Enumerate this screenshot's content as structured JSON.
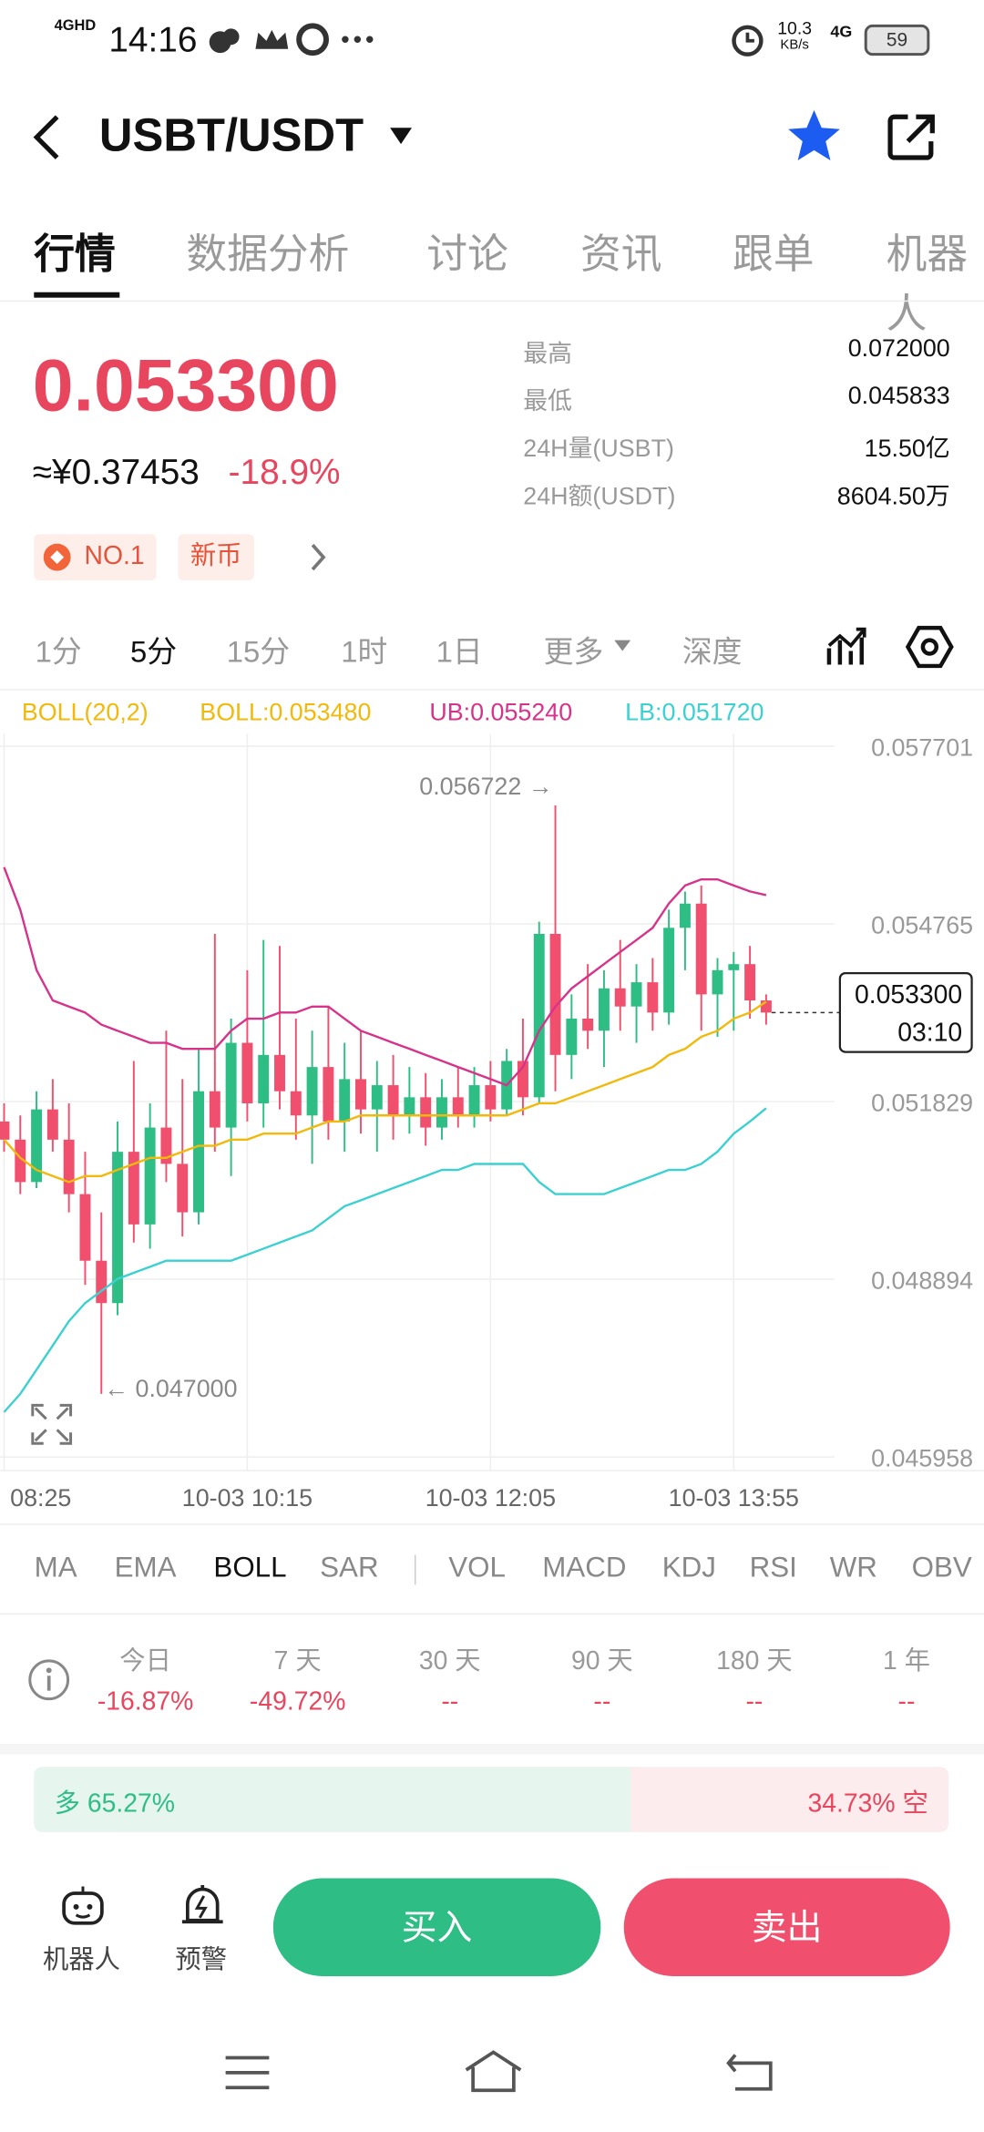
{
  "status_bar": {
    "network": "4GHD",
    "time": "14:16",
    "speed": "10.3",
    "speed_unit": "KB/s",
    "network2": "4G",
    "battery": "59"
  },
  "header": {
    "pair": "USBT/USDT"
  },
  "tabs": [
    "行情",
    "数据分析",
    "讨论",
    "资讯",
    "跟单",
    "机器人"
  ],
  "price": {
    "last": "0.053300",
    "cny": "≈¥0.37453",
    "change": "-18.9%"
  },
  "stats": [
    {
      "label": "最高",
      "value": "0.072000"
    },
    {
      "label": "最低",
      "value": "0.045833"
    },
    {
      "label": "24H量(USBT)",
      "value": "15.50亿"
    },
    {
      "label": "24H额(USDT)",
      "value": "8604.50万"
    }
  ],
  "badges": [
    "NO.1",
    "新币"
  ],
  "intervals": [
    "1分",
    "5分",
    "15分",
    "1时",
    "1日",
    "更多",
    "深度"
  ],
  "chart_data": {
    "type": "candlestick",
    "indicator": "BOLL(20,2)",
    "categories": [
      "08:25",
      null,
      null,
      null,
      null,
      null,
      null,
      null,
      null,
      null,
      null,
      null,
      null,
      null,
      null,
      "10-03 10:15",
      null,
      null,
      null,
      null,
      null,
      null,
      null,
      null,
      null,
      null,
      null,
      null,
      null,
      null,
      "10-03 12:05",
      null,
      null,
      null,
      null,
      null,
      null,
      null,
      null,
      null,
      null,
      null,
      null,
      null,
      null,
      "10-03 13:55",
      null,
      null
    ],
    "open": [
      0.0515,
      0.0512,
      0.0505,
      0.0517,
      0.0512,
      0.0503,
      0.0492,
      0.0485,
      0.051,
      0.0498,
      0.0514,
      0.0508,
      0.05,
      0.052,
      0.0514,
      0.0528,
      0.0518,
      0.0526,
      0.052,
      0.0516,
      0.0524,
      0.0515,
      0.0522,
      0.0517,
      0.0521,
      0.0516,
      0.0519,
      0.0514,
      0.0519,
      0.0516,
      0.0521,
      0.0517,
      0.0525,
      0.0519,
      0.0546,
      0.0526,
      0.0532,
      0.053,
      0.0537,
      0.0534,
      0.0538,
      0.0533,
      0.0547,
      0.0551,
      0.0536,
      0.054,
      0.0541,
      0.0535
    ],
    "high": [
      0.0518,
      0.0516,
      0.052,
      0.0522,
      0.0518,
      0.051,
      0.05,
      0.0515,
      0.0525,
      0.0518,
      0.053,
      0.0522,
      0.0527,
      0.0546,
      0.0532,
      0.054,
      0.0545,
      0.0544,
      0.0532,
      0.053,
      0.0534,
      0.0528,
      0.053,
      0.0525,
      0.0526,
      0.0524,
      0.0523,
      0.0522,
      0.0524,
      0.0524,
      0.0525,
      0.0527,
      0.0532,
      0.0548,
      0.056722,
      0.0536,
      0.0541,
      0.054,
      0.0545,
      0.0541,
      0.0542,
      0.055,
      0.0553,
      0.0554,
      0.0542,
      0.0543,
      0.0544,
      0.0536
    ],
    "low": [
      0.051,
      0.0503,
      0.0504,
      0.051,
      0.05,
      0.0488,
      0.047,
      0.0483,
      0.0495,
      0.0494,
      0.0505,
      0.0496,
      0.0498,
      0.051,
      0.0506,
      0.0515,
      0.0514,
      0.0517,
      0.0512,
      0.0508,
      0.0512,
      0.051,
      0.0513,
      0.051,
      0.0512,
      0.0513,
      0.0511,
      0.0512,
      0.0514,
      0.0514,
      0.0515,
      0.0516,
      0.0516,
      0.0518,
      0.052,
      0.0522,
      0.0527,
      0.0524,
      0.053,
      0.0528,
      0.053,
      0.0531,
      0.054,
      0.053,
      0.0529,
      0.053,
      0.0532,
      0.0531
    ],
    "close": [
      0.0512,
      0.0505,
      0.0517,
      0.0512,
      0.0503,
      0.0492,
      0.0485,
      0.051,
      0.0498,
      0.0514,
      0.0508,
      0.05,
      0.052,
      0.0514,
      0.0528,
      0.0518,
      0.0526,
      0.052,
      0.0516,
      0.0524,
      0.0515,
      0.0522,
      0.0517,
      0.0521,
      0.0516,
      0.0519,
      0.0514,
      0.0519,
      0.0516,
      0.0521,
      0.0517,
      0.0525,
      0.0519,
      0.0546,
      0.0526,
      0.0532,
      0.053,
      0.0537,
      0.0534,
      0.0538,
      0.0533,
      0.0547,
      0.0551,
      0.0536,
      0.054,
      0.0541,
      0.0535,
      0.0533
    ],
    "up_color": "#2ebd85",
    "down_color": "#f0506e",
    "series": [
      {
        "name": "BOLL:0.053480",
        "color": "#f0b90b",
        "values": [
          0.0512,
          0.0509,
          0.0507,
          0.0506,
          0.0505,
          0.0506,
          0.0506,
          0.0507,
          0.0508,
          0.0509,
          0.0509,
          0.051,
          0.0511,
          0.0511,
          0.0512,
          0.0512,
          0.0513,
          0.0513,
          0.0513,
          0.0514,
          0.0515,
          0.0515,
          0.0516,
          0.0516,
          0.0516,
          0.0516,
          0.0516,
          0.0516,
          0.0516,
          0.0516,
          0.0516,
          0.0516,
          0.0517,
          0.0518,
          0.0518,
          0.0519,
          0.052,
          0.0521,
          0.0522,
          0.0523,
          0.0524,
          0.0526,
          0.0527,
          0.0529,
          0.053,
          0.0532,
          0.0533,
          0.05348
        ]
      },
      {
        "name": "UB:0.055240",
        "color": "#d6338a",
        "values": [
          0.0557,
          0.055,
          0.054,
          0.0535,
          0.0534,
          0.0533,
          0.0531,
          0.053,
          0.0529,
          0.0528,
          0.0528,
          0.0527,
          0.0527,
          0.0527,
          0.053,
          0.0532,
          0.0532,
          0.0533,
          0.0533,
          0.0534,
          0.0534,
          0.0532,
          0.053,
          0.0529,
          0.0528,
          0.0527,
          0.0526,
          0.0525,
          0.0524,
          0.0523,
          0.0522,
          0.0521,
          0.0524,
          0.053,
          0.0534,
          0.0537,
          0.0539,
          0.0541,
          0.0543,
          0.0545,
          0.0547,
          0.0551,
          0.0554,
          0.0555,
          0.0555,
          0.0554,
          0.0553,
          0.05524
        ]
      },
      {
        "name": "LB:0.051720",
        "color": "#3dd0d0",
        "values": [
          0.0467,
          0.047,
          0.0474,
          0.0478,
          0.0482,
          0.0485,
          0.0487,
          0.0489,
          0.049,
          0.0491,
          0.0492,
          0.0492,
          0.0492,
          0.0492,
          0.0492,
          0.0493,
          0.0494,
          0.0495,
          0.0496,
          0.0497,
          0.0499,
          0.0501,
          0.0502,
          0.0503,
          0.0504,
          0.0505,
          0.0506,
          0.0507,
          0.0507,
          0.0508,
          0.0508,
          0.0508,
          0.0508,
          0.0505,
          0.0503,
          0.0503,
          0.0503,
          0.0503,
          0.0504,
          0.0505,
          0.0506,
          0.0507,
          0.0507,
          0.0508,
          0.051,
          0.0513,
          0.0515,
          0.05172
        ]
      }
    ],
    "ylim": [
      0.045958,
      0.057701
    ],
    "yticks": [
      0.045958,
      0.048894,
      0.051829,
      0.054765,
      0.057701
    ],
    "grid": true,
    "annotations": [
      {
        "index": 34,
        "value": 0.056722,
        "label": "0.056722 →",
        "side": "left"
      },
      {
        "index": 6,
        "value": 0.047,
        "label": "← 0.047000",
        "side": "right"
      }
    ],
    "current": {
      "value": 0.0533,
      "label": "0.053300",
      "countdown": "03:10"
    }
  },
  "indicator_tabs": [
    "MA",
    "EMA",
    "BOLL",
    "SAR",
    "VOL",
    "MACD",
    "KDJ",
    "RSI",
    "WR",
    "OBV"
  ],
  "performance": {
    "labels": [
      "今日",
      "7 天",
      "30 天",
      "90 天",
      "180 天",
      "1 年"
    ],
    "values": [
      "-16.87%",
      "-49.72%",
      "--",
      "--",
      "--",
      "--"
    ]
  },
  "long_short": {
    "long": {
      "value": 65.27,
      "label": "多 65.27%"
    },
    "short": {
      "value": 34.73,
      "label": "34.73% 空"
    }
  },
  "bottom_bar": {
    "robot": "机器人",
    "alert": "预警",
    "buy": "买入",
    "sell": "卖出"
  }
}
